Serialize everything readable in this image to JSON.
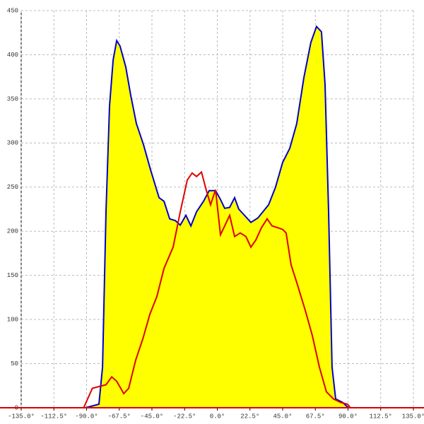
{
  "chart_data": {
    "type": "area",
    "xlim": [
      -135,
      135
    ],
    "ylim": [
      0,
      450
    ],
    "xticks": [
      {
        "value": -135,
        "label": "-135.0°"
      },
      {
        "value": -112.5,
        "label": "-112.5°"
      },
      {
        "value": -90,
        "label": "-90.0°"
      },
      {
        "value": -67.5,
        "label": "-67.5°"
      },
      {
        "value": -45,
        "label": "-45.0°"
      },
      {
        "value": -22.5,
        "label": "-22.5°"
      },
      {
        "value": 0,
        "label": "0.0°"
      },
      {
        "value": 22.5,
        "label": "22.5°"
      },
      {
        "value": 45,
        "label": "45.0°"
      },
      {
        "value": 67.5,
        "label": "67.5°"
      },
      {
        "value": 90,
        "label": "90.0°"
      },
      {
        "value": 112.5,
        "label": "112.5°"
      },
      {
        "value": 135,
        "label": "135.0°"
      }
    ],
    "yticks": [
      0,
      50,
      100,
      150,
      200,
      250,
      300,
      350,
      400,
      450
    ],
    "grid": true,
    "series": [
      {
        "color": "#0000cc",
        "fill": "#ffff00",
        "x": [
          -90.7,
          -81.5,
          -79,
          -76.6,
          -74.2,
          -71.7,
          -69.3,
          -67,
          -63,
          -59.6,
          -55.7,
          -50.8,
          -46,
          -40.1,
          -36.7,
          -32.8,
          -28.9,
          -25.5,
          -21.6,
          -18.2,
          -14.3,
          -9.5,
          -5.6,
          -1.2,
          2.2,
          5.1,
          8.5,
          11.9,
          14.8,
          18.2,
          23.1,
          27.9,
          31.4,
          35.3,
          40.1,
          45,
          49.9,
          54.7,
          59.6,
          64.4,
          68.3,
          71.7,
          74.2,
          76.6,
          79,
          81.5,
          86.3,
          90.2
        ],
        "values": [
          0,
          4,
          46,
          222,
          342,
          394,
          416,
          410,
          386,
          354,
          322,
          298,
          270,
          238,
          234,
          214,
          212,
          207,
          218,
          206,
          222,
          234,
          246,
          246,
          236,
          226,
          227,
          238,
          225,
          219,
          210,
          215,
          222,
          230,
          250,
          278,
          294,
          322,
          374,
          414,
          432,
          426,
          366,
          222,
          46,
          10,
          6,
          0
        ]
      },
      {
        "color": "#dd0000",
        "x": [
          -92,
          -86,
          -81.5,
          -76.6,
          -72.7,
          -69.3,
          -64.4,
          -61,
          -56.2,
          -51.3,
          -46.4,
          -41.6,
          -36.7,
          -30.4,
          -25.5,
          -20.7,
          -17.3,
          -14.3,
          -10.9,
          -7.5,
          -4.6,
          -1.2,
          2.2,
          5.1,
          8.5,
          11.9,
          15.8,
          19.7,
          23.1,
          26.5,
          30.4,
          34.3,
          37.7,
          41.6,
          45,
          47.4,
          50.8,
          54.7,
          60.6,
          65.4,
          70.3,
          75.1,
          80,
          84.9,
          89.7,
          91.6
        ],
        "values": [
          0,
          22,
          24,
          26,
          35,
          30,
          16,
          22,
          54,
          78,
          106,
          126,
          158,
          182,
          222,
          258,
          266,
          262,
          267,
          246,
          230,
          247,
          196,
          206,
          218,
          194,
          198,
          194,
          182,
          190,
          204,
          214,
          206,
          204,
          202,
          198,
          162,
          142,
          110,
          82,
          46,
          18,
          10,
          6,
          4,
          0
        ]
      }
    ]
  }
}
